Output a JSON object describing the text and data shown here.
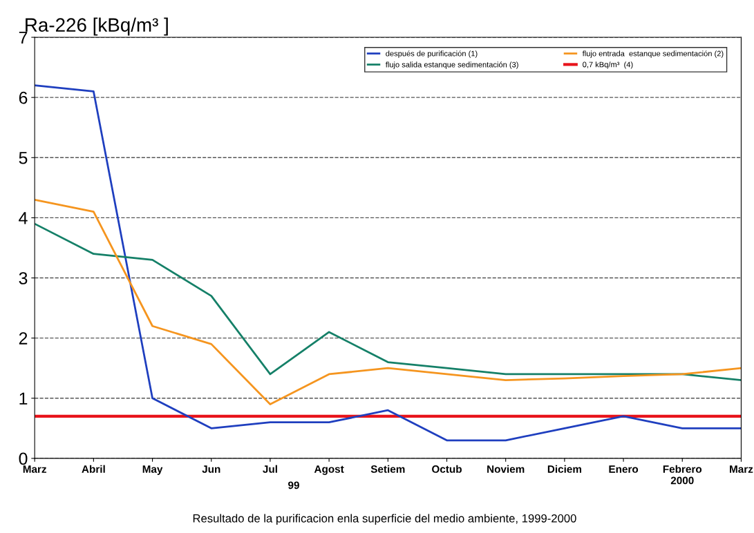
{
  "chart_data": {
    "type": "line",
    "title": "Ra-226 [kBq/m³ ]",
    "categories": [
      "Marz",
      "Abril",
      "May",
      "Jun",
      "Jul",
      "Agost",
      "Setiem",
      "Octub",
      "Noviem",
      "Diciem",
      "Enero",
      "Febrero\n2000",
      "Marz"
    ],
    "series": [
      {
        "name": "después de purificación (1)",
        "color": "#1f3fbf",
        "values": [
          6.2,
          6.1,
          1.0,
          0.5,
          0.6,
          0.6,
          0.8,
          0.3,
          0.3,
          0.5,
          0.7,
          0.5,
          0.5
        ]
      },
      {
        "name": "flujo salida estanque sedimentación (3)",
        "color": "#158068",
        "values": [
          3.9,
          3.4,
          3.3,
          2.7,
          1.4,
          2.1,
          1.6,
          1.5,
          1.4,
          1.4,
          1.4,
          1.4,
          1.3
        ]
      },
      {
        "name": "flujo entrada  estanque sedimentación (2)",
        "color": "#f5951f",
        "values": [
          4.3,
          4.1,
          2.2,
          1.9,
          0.9,
          1.4,
          1.5,
          1.4,
          1.3,
          1.33,
          1.37,
          1.4,
          1.5
        ]
      }
    ],
    "ref_lines": [
      {
        "axis": "y",
        "value": 0.7,
        "label": "0,7 kBq/m³  (4)",
        "color": "#e8141b"
      }
    ],
    "ylim": [
      0,
      7
    ],
    "yticks": [
      0,
      1,
      2,
      3,
      4,
      5,
      6,
      7
    ],
    "grid": "y",
    "legend": "top right",
    "marker": "none",
    "line_style": "solid",
    "annotations": [
      "99",
      "Resultado de la purificacion enla superficie del medio ambiente, 1999-2000"
    ]
  }
}
